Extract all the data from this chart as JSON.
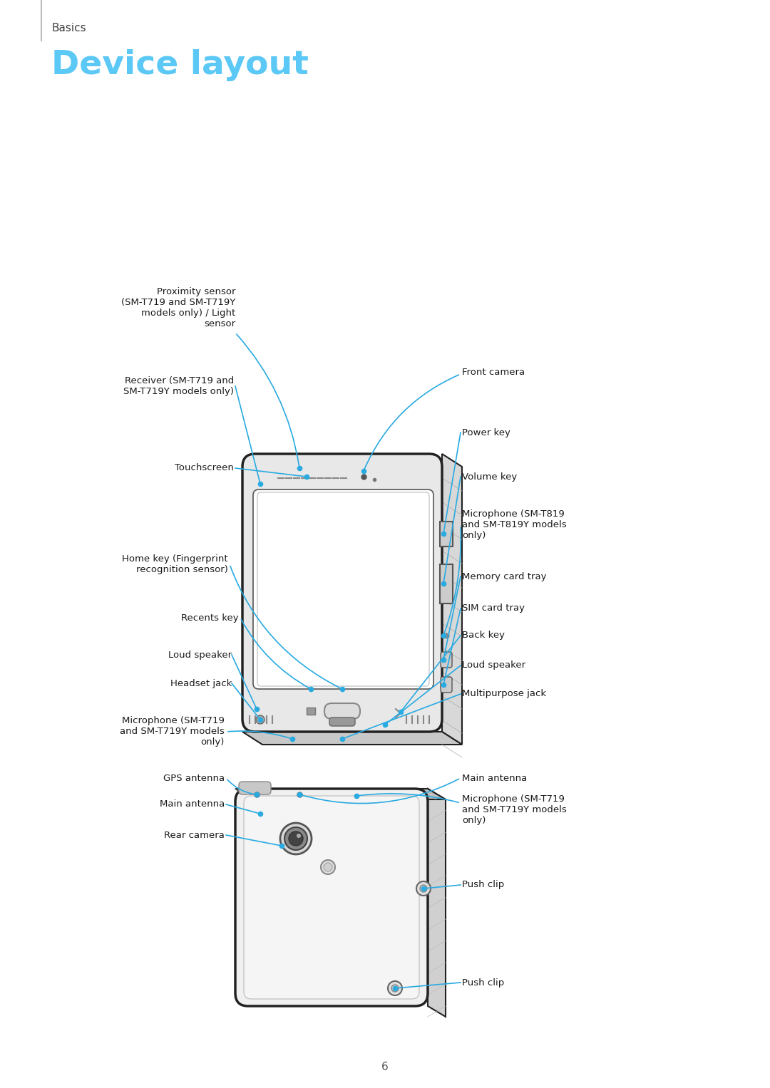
{
  "title": "Device layout",
  "section": "Basics",
  "page_number": "6",
  "title_color": "#5bc8f5",
  "section_color": "#404040",
  "line_color": "#29aae1",
  "dot_color": "#29aae1",
  "text_color": "#1a1a1a",
  "bg_color": "#ffffff"
}
